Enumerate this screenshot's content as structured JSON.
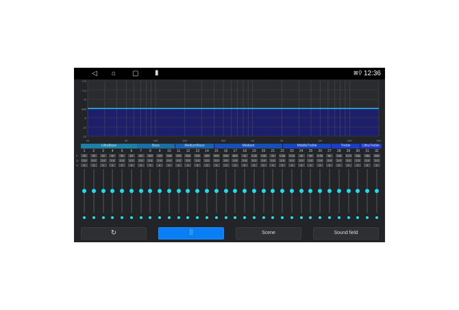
{
  "status": {
    "time": "12:36",
    "nav": [
      "back-icon",
      "home-icon",
      "recents-icon",
      "battery-icon"
    ]
  },
  "graph": {
    "y_labels": [
      "+15",
      "+10",
      "+5",
      "0dB",
      "-5",
      "-10",
      "-15"
    ],
    "x_labels": [
      "20",
      "50",
      "100",
      "200",
      "500",
      "1K",
      "2K",
      "5K",
      "10K",
      "20K"
    ],
    "level_db": 0,
    "colors": {
      "curve": "#29c6ee",
      "fill": "#1e1f6a"
    }
  },
  "categories": [
    "UltraBass",
    "Bass",
    "MediumBass",
    "Mediant",
    "MiddleTreble",
    "Treble",
    "UltraTreble"
  ],
  "row_labels": [
    "F:",
    "Q:",
    "G:"
  ],
  "bands": {
    "freq": [
      "20",
      "25",
      "32",
      "40",
      "50",
      "63",
      "80",
      "100",
      "125",
      "160",
      "200",
      "250",
      "315",
      "400",
      "500",
      "630",
      "800",
      "1k",
      "1.2k",
      "1.6k",
      "2k",
      "2.5k",
      "3.1k",
      "4k",
      "5k",
      "6.3k",
      "8k",
      "10k",
      "12.5",
      "16k",
      "18k",
      "20k"
    ],
    "q": "2.0",
    "gain": "0"
  },
  "buttons": {
    "reset": "reset-icon",
    "eq": "equalizer-icon",
    "scene": "Scene",
    "sound_field": "Sound field"
  },
  "accent": "#19e0f0"
}
